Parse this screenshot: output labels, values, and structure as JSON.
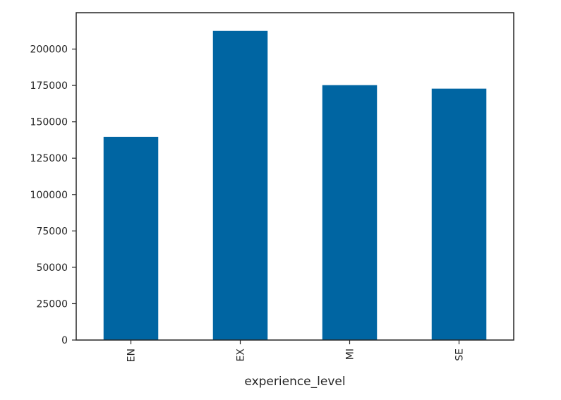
{
  "chart_data": {
    "type": "bar",
    "title": "",
    "xlabel": "experience_level",
    "ylabel": "",
    "categories": [
      "EN",
      "EX",
      "MI",
      "SE"
    ],
    "values": [
      139700,
      212500,
      175200,
      172800
    ],
    "ylim": [
      0,
      225000
    ],
    "yticks": [
      0,
      25000,
      50000,
      75000,
      100000,
      125000,
      150000,
      175000,
      200000
    ],
    "ytick_labels": [
      "0",
      "25000",
      "50000",
      "75000",
      "100000",
      "125000",
      "150000",
      "175000",
      "200000"
    ],
    "grid": false,
    "legend": "none",
    "bar_color": "#0065a2",
    "frame_color": "#262626"
  }
}
